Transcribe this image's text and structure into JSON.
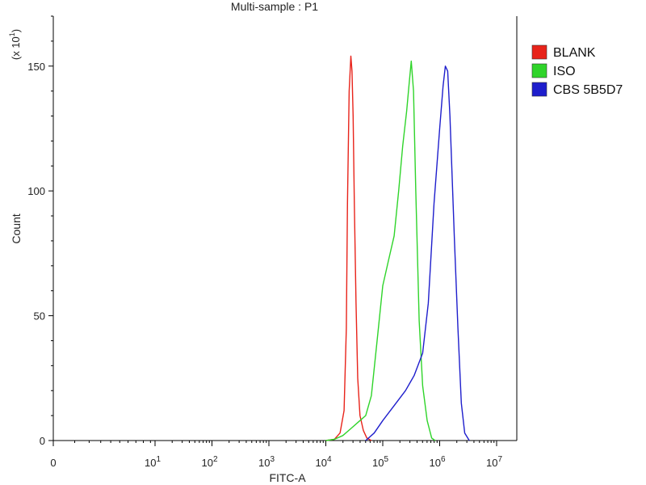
{
  "chart_data": {
    "type": "line",
    "title": "Multi-sample : P1",
    "xlabel": "FITC-A",
    "ylabel": "Count",
    "y_multiplier": "(x 10",
    "y_multiplier_exp": "1",
    "ylim": [
      0,
      170
    ],
    "x_scale": "biexponential",
    "x_ticks": [
      {
        "label": "0",
        "exp": ""
      },
      {
        "label": "10",
        "exp": "1"
      },
      {
        "label": "10",
        "exp": "2"
      },
      {
        "label": "10",
        "exp": "3"
      },
      {
        "label": "10",
        "exp": "4"
      },
      {
        "label": "10",
        "exp": "5"
      },
      {
        "label": "10",
        "exp": "6"
      },
      {
        "label": "10",
        "exp": "7"
      }
    ],
    "y_ticks": [
      "0",
      "50",
      "100",
      "150"
    ],
    "grid": false,
    "legend_position": "right",
    "series": [
      {
        "name": "BLANK",
        "color": "#e8231a",
        "log_x": [
          4.0,
          4.15,
          4.25,
          4.32,
          4.36,
          4.38,
          4.41,
          4.44,
          4.46,
          4.48,
          4.5,
          4.53,
          4.56,
          4.6,
          4.66,
          4.72,
          4.8
        ],
        "y": [
          0,
          0.5,
          3,
          12,
          45,
          95,
          140,
          154,
          148,
          130,
          95,
          55,
          25,
          10,
          4,
          1,
          0
        ]
      },
      {
        "name": "ISO",
        "color": "#2fd42a",
        "log_x": [
          4.0,
          4.15,
          4.3,
          4.45,
          4.6,
          4.7,
          4.8,
          4.9,
          5.0,
          5.1,
          5.2,
          5.28,
          5.35,
          5.42,
          5.46,
          5.5,
          5.54,
          5.58,
          5.64,
          5.7,
          5.78,
          5.86,
          5.92
        ],
        "y": [
          0,
          0.5,
          2,
          5,
          8,
          10,
          18,
          40,
          62,
          72,
          82,
          100,
          118,
          132,
          142,
          152,
          140,
          100,
          48,
          22,
          8,
          1,
          0
        ]
      },
      {
        "name": "CBS 5B5D7",
        "color": "#1e1ecc",
        "log_x": [
          4.7,
          4.85,
          5.0,
          5.2,
          5.4,
          5.55,
          5.7,
          5.8,
          5.9,
          6.0,
          6.06,
          6.1,
          6.14,
          6.18,
          6.22,
          6.26,
          6.32,
          6.38,
          6.44,
          6.52
        ],
        "y": [
          0,
          3,
          8,
          14,
          20,
          26,
          35,
          55,
          95,
          125,
          142,
          150,
          148,
          130,
          105,
          80,
          45,
          15,
          3,
          0
        ]
      }
    ]
  }
}
